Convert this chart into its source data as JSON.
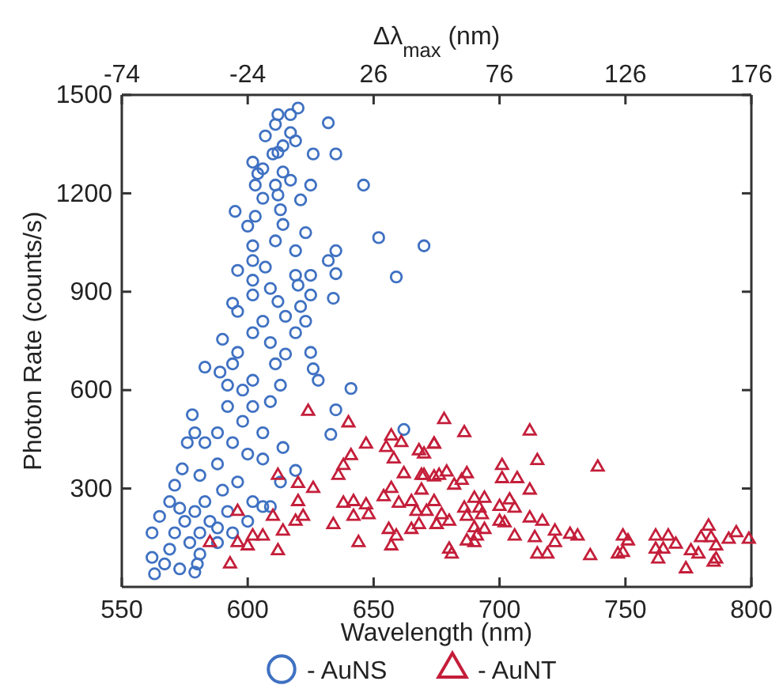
{
  "chart_data": {
    "type": "scatter",
    "xlabel": "Wavelength (nm)",
    "ylabel": "Photon Rate (counts/s)",
    "x2label": "Δλ$_{max}$ (nm)",
    "xlim": [
      550,
      800
    ],
    "xticks": [
      550,
      600,
      650,
      700,
      750,
      800
    ],
    "ylim": [
      0,
      1500
    ],
    "yticks": [
      300,
      600,
      900,
      1200,
      1500
    ],
    "x2lim": [
      -74,
      176
    ],
    "x2ticks": [
      -74,
      -24,
      26,
      76,
      126,
      176
    ],
    "grid": false,
    "legend": "bottom",
    "series": [
      {
        "name": "- AuNS",
        "color": "#3f71c2",
        "marker": "circle",
        "x": [
          620,
          617,
          612,
          611,
          632,
          617,
          619,
          607,
          614,
          612,
          610,
          626,
          635,
          602,
          606,
          604,
          614,
          611,
          603,
          617,
          625,
          646,
          612,
          606,
          621,
          595,
          603,
          613,
          600,
          614,
          623,
          652,
          670,
          602,
          611,
          619,
          635,
          632,
          602,
          607,
          596,
          619,
          625,
          635,
          659,
          602,
          609,
          620,
          594,
          602,
          612,
          625,
          634,
          590,
          583,
          589,
          596,
          602,
          609,
          619,
          625,
          626,
          628,
          641,
          635,
          633,
          662,
          578,
          579,
          576,
          592,
          598,
          606,
          614,
          619,
          613,
          606,
          600,
          594,
          588,
          581,
          579,
          573,
          567,
          562,
          563,
          562,
          565,
          569,
          571,
          574,
          581,
          588,
          571,
          575,
          579,
          583,
          590,
          596,
          577,
          569,
          585,
          592,
          602,
          609,
          606,
          600,
          594,
          588,
          583,
          592,
          598,
          594,
          602,
          611,
          615,
          609,
          602,
          613,
          596,
          606,
          615,
          623,
          621,
          573,
          581,
          588,
          580
        ],
        "values": [
          1460,
          1440,
          1440,
          1410,
          1415,
          1385,
          1360,
          1375,
          1345,
          1325,
          1320,
          1320,
          1320,
          1295,
          1275,
          1260,
          1265,
          1225,
          1225,
          1240,
          1225,
          1225,
          1195,
          1185,
          1180,
          1145,
          1130,
          1150,
          1100,
          1105,
          1080,
          1065,
          1040,
          1040,
          1055,
          1025,
          1025,
          995,
          995,
          975,
          965,
          950,
          950,
          955,
          945,
          935,
          910,
          920,
          865,
          890,
          870,
          890,
          880,
          755,
          670,
          655,
          715,
          775,
          745,
          775,
          715,
          665,
          630,
          605,
          540,
          465,
          480,
          525,
          470,
          440,
          550,
          505,
          470,
          425,
          355,
          320,
          245,
          200,
          165,
          135,
          100,
          45,
          55,
          70,
          90,
          40,
          165,
          215,
          260,
          310,
          360,
          340,
          375,
          165,
          200,
          230,
          260,
          295,
          320,
          135,
          115,
          200,
          230,
          260,
          245,
          390,
          405,
          440,
          470,
          440,
          615,
          600,
          680,
          630,
          680,
          710,
          565,
          550,
          615,
          840,
          810,
          825,
          810,
          855,
          240,
          165,
          180,
          70
        ]
      },
      {
        "name": "- AuNT",
        "color": "#c41e3a",
        "marker": "triangle",
        "x": [
          624,
          640,
          647,
          641,
          638,
          636,
          638,
          642,
          647,
          648,
          642,
          634,
          644,
          612,
          620,
          626,
          620,
          622,
          619,
          614,
          610,
          606,
          602,
          600,
          596,
          596,
          585,
          612,
          593,
          657,
          661,
          655,
          658,
          662,
          657,
          654,
          660,
          665,
          670,
          674,
          670,
          676,
          667,
          671,
          665,
          659,
          656,
          657,
          675,
          678,
          686,
          712,
          674,
          668,
          715,
          739,
          701,
          701,
          707,
          712,
          687,
          685,
          682,
          679,
          674,
          669,
          669,
          674,
          677,
          680,
          675,
          668,
          690,
          694,
          700,
          704,
          706,
          686,
          692,
          687,
          693,
          700,
          702,
          690,
          694,
          691,
          687,
          690,
          706,
          712,
          717,
          722,
          722,
          728,
          731,
          714,
          715,
          719,
          680,
          681,
          736,
          747,
          749,
          749,
          751,
          762,
          767,
          770,
          762,
          765,
          763,
          774,
          776,
          779,
          780,
          783,
          784,
          786,
          786,
          785,
          791,
          794,
          799
        ],
        "values": [
          535,
          500,
          435,
          400,
          370,
          340,
          255,
          260,
          250,
          220,
          215,
          190,
          135,
          340,
          315,
          300,
          260,
          215,
          200,
          170,
          215,
          155,
          155,
          125,
          135,
          230,
          135,
          110,
          70,
          460,
          440,
          425,
          390,
          345,
          300,
          275,
          255,
          260,
          405,
          435,
          340,
          340,
          230,
          230,
          175,
          155,
          175,
          125,
          190,
          510,
          470,
          475,
          435,
          415,
          385,
          365,
          370,
          330,
          330,
          295,
          345,
          325,
          310,
          350,
          335,
          340,
          295,
          260,
          220,
          200,
          190,
          190,
          270,
          270,
          245,
          265,
          240,
          240,
          240,
          215,
          220,
          200,
          195,
          180,
          175,
          155,
          140,
          135,
          155,
          210,
          200,
          170,
          135,
          160,
          155,
          150,
          100,
          100,
          115,
          100,
          95,
          100,
          105,
          155,
          140,
          155,
          155,
          130,
          115,
          115,
          85,
          55,
          110,
          100,
          150,
          185,
          150,
          125,
          85,
          75,
          145,
          165,
          145
        ]
      }
    ]
  }
}
